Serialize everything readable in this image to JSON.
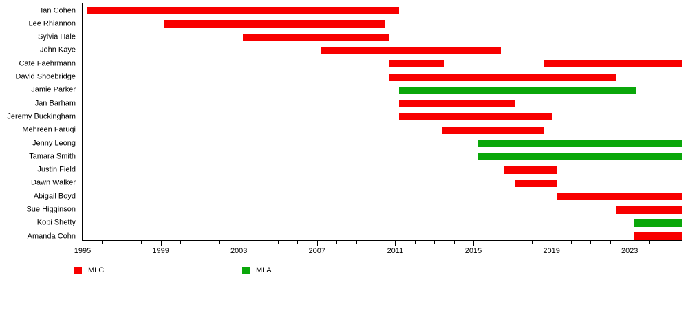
{
  "chart_data": {
    "type": "bar",
    "subtype": "gantt-timeline",
    "title": "",
    "xlabel": "",
    "ylabel": "",
    "x_axis": {
      "unit": "year",
      "min": 1995,
      "max": 2025.7,
      "major_ticks": [
        1995,
        1999,
        2003,
        2007,
        2011,
        2015,
        2019,
        2023
      ],
      "minor_tick_interval": 1,
      "tick_range": [
        1995,
        2025
      ]
    },
    "colors": {
      "MLC": "#f80000",
      "MLA": "#0aa70a",
      "axis": "#000000",
      "background": "#ffffff"
    },
    "legend": [
      {
        "label": "MLC",
        "color_key": "MLC"
      },
      {
        "label": "MLA",
        "color_key": "MLA"
      }
    ],
    "members": [
      {
        "name": "Ian Cohen",
        "role": "MLC",
        "terms": [
          {
            "start": 1995.2,
            "end": 2011.2
          }
        ]
      },
      {
        "name": "Lee Rhiannon",
        "role": "MLC",
        "terms": [
          {
            "start": 1999.2,
            "end": 2010.5
          }
        ]
      },
      {
        "name": "Sylvia Hale",
        "role": "MLC",
        "terms": [
          {
            "start": 2003.2,
            "end": 2010.7
          }
        ]
      },
      {
        "name": "John Kaye",
        "role": "MLC",
        "terms": [
          {
            "start": 2007.2,
            "end": 2016.4
          }
        ]
      },
      {
        "name": "Cate Faehrmann",
        "role": "MLC",
        "terms": [
          {
            "start": 2010.7,
            "end": 2013.5
          },
          {
            "start": 2018.6,
            "end": 2025.7
          }
        ]
      },
      {
        "name": "David Shoebridge",
        "role": "MLC",
        "terms": [
          {
            "start": 2010.7,
            "end": 2022.3
          }
        ]
      },
      {
        "name": "Jamie Parker",
        "role": "MLA",
        "terms": [
          {
            "start": 2011.2,
            "end": 2023.3
          }
        ]
      },
      {
        "name": "Jan Barham",
        "role": "MLC",
        "terms": [
          {
            "start": 2011.2,
            "end": 2017.1
          }
        ]
      },
      {
        "name": "Jeremy Buckingham",
        "role": "MLC",
        "terms": [
          {
            "start": 2011.2,
            "end": 2019.0
          }
        ]
      },
      {
        "name": "Mehreen Faruqi",
        "role": "MLC",
        "terms": [
          {
            "start": 2013.4,
            "end": 2018.6
          }
        ]
      },
      {
        "name": "Jenny Leong",
        "role": "MLA",
        "terms": [
          {
            "start": 2015.25,
            "end": 2025.7
          }
        ]
      },
      {
        "name": "Tamara Smith",
        "role": "MLA",
        "terms": [
          {
            "start": 2015.25,
            "end": 2025.7
          }
        ]
      },
      {
        "name": "Justin Field",
        "role": "MLC",
        "terms": [
          {
            "start": 2016.6,
            "end": 2019.25
          }
        ]
      },
      {
        "name": "Dawn Walker",
        "role": "MLC",
        "terms": [
          {
            "start": 2017.15,
            "end": 2019.25
          }
        ]
      },
      {
        "name": "Abigail Boyd",
        "role": "MLC",
        "terms": [
          {
            "start": 2019.25,
            "end": 2025.7
          }
        ]
      },
      {
        "name": "Sue Higginson",
        "role": "MLC",
        "terms": [
          {
            "start": 2022.3,
            "end": 2025.7
          }
        ]
      },
      {
        "name": "Kobi Shetty",
        "role": "MLA",
        "terms": [
          {
            "start": 2023.2,
            "end": 2025.7
          }
        ]
      },
      {
        "name": "Amanda Cohn",
        "role": "MLC",
        "terms": [
          {
            "start": 2023.2,
            "end": 2025.7
          }
        ]
      }
    ]
  }
}
